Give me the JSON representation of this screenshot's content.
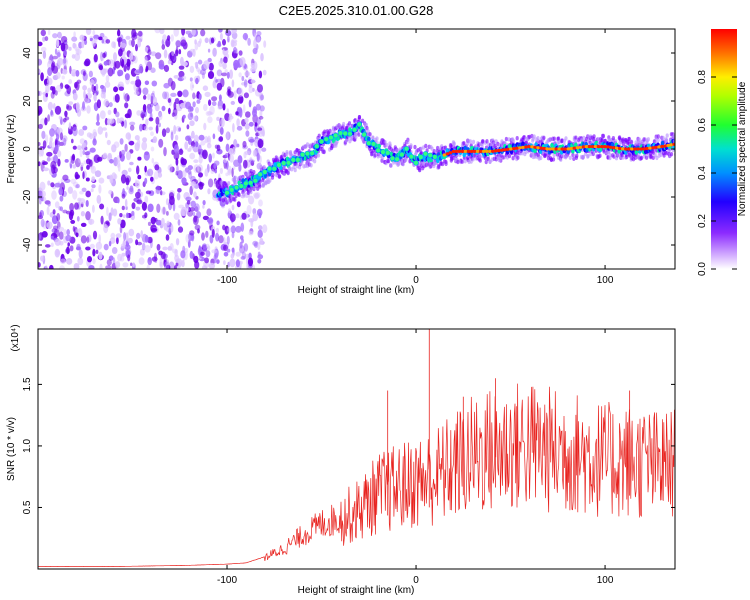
{
  "title": "C2E5.2025.310.01.00.G28",
  "chart_data": [
    {
      "type": "heatmap",
      "xlabel": "Height of straight line (km)",
      "ylabel": "Frequency (Hz)",
      "xlim": [
        -200,
        137
      ],
      "ylim": [
        -50,
        50
      ],
      "x_ticks": [
        "-100",
        "0",
        "100"
      ],
      "y_ticks": [
        "-40",
        "-20",
        "0",
        "20",
        "40"
      ],
      "colorbar": {
        "label": "Normalized spectral amplitude",
        "range": [
          0,
          1
        ],
        "ticks": [
          "0.0",
          "0.2",
          "0.4",
          "0.6",
          "0.8"
        ],
        "colors": [
          "#ffffff",
          "#b27dff",
          "#7a00ff",
          "#0000ff",
          "#00c0ff",
          "#00ff60",
          "#a0ff00",
          "#ffff00",
          "#ff8000",
          "#ff0000"
        ]
      },
      "ridge": {
        "x": [
          -105,
          -100,
          -95,
          -90,
          -85,
          -80,
          -75,
          -70,
          -65,
          -60,
          -55,
          -50,
          -45,
          -40,
          -35,
          -30,
          -25,
          -20,
          -15,
          -10,
          -5,
          0,
          5,
          10,
          20,
          30,
          40,
          50,
          60,
          70,
          80,
          90,
          100,
          110,
          120,
          130,
          137
        ],
        "y": [
          -18,
          -18,
          -16,
          -14,
          -13,
          -10,
          -8,
          -6,
          -5,
          -3,
          -2,
          3,
          4,
          6,
          7,
          10,
          3,
          0,
          -2,
          -4,
          0,
          -5,
          -3,
          -4,
          -1,
          -1,
          -1,
          0,
          1,
          0,
          0,
          1,
          1,
          0,
          0,
          1,
          2
        ]
      },
      "noise_region_x": [
        -200,
        -80
      ]
    },
    {
      "type": "line",
      "xlabel": "Height of straight line (km)",
      "ylabel": "SNR (10 * v/v)",
      "y_multiplier": "(x10⁴)",
      "xlim": [
        -200,
        137
      ],
      "ylim": [
        0,
        1.95
      ],
      "x_ticks": [
        "-100",
        "0",
        "100"
      ],
      "y_ticks": [
        "0.5",
        "1.0",
        "1.5"
      ],
      "color": "#e8231f",
      "envelope": {
        "x": [
          -200,
          -160,
          -120,
          -100,
          -90,
          -80,
          -70,
          -60,
          -50,
          -40,
          -30,
          -20,
          -10,
          0,
          10,
          20,
          30,
          40,
          50,
          60,
          70,
          80,
          90,
          100,
          110,
          120,
          130,
          137
        ],
        "y": [
          0.02,
          0.02,
          0.03,
          0.04,
          0.05,
          0.1,
          0.18,
          0.3,
          0.4,
          0.45,
          0.55,
          0.7,
          0.75,
          0.8,
          0.85,
          0.95,
          1.05,
          1.1,
          1.12,
          1.15,
          1.1,
          1.08,
          1.05,
          1.0,
          1.0,
          0.98,
          0.95,
          0.97
        ]
      },
      "spikes": [
        {
          "x": 7,
          "y": 1.95
        },
        {
          "x": -15,
          "y": 1.45
        },
        {
          "x": 42,
          "y": 1.55
        },
        {
          "x": 25,
          "y": 1.4
        },
        {
          "x": 113,
          "y": 1.45
        }
      ]
    }
  ]
}
